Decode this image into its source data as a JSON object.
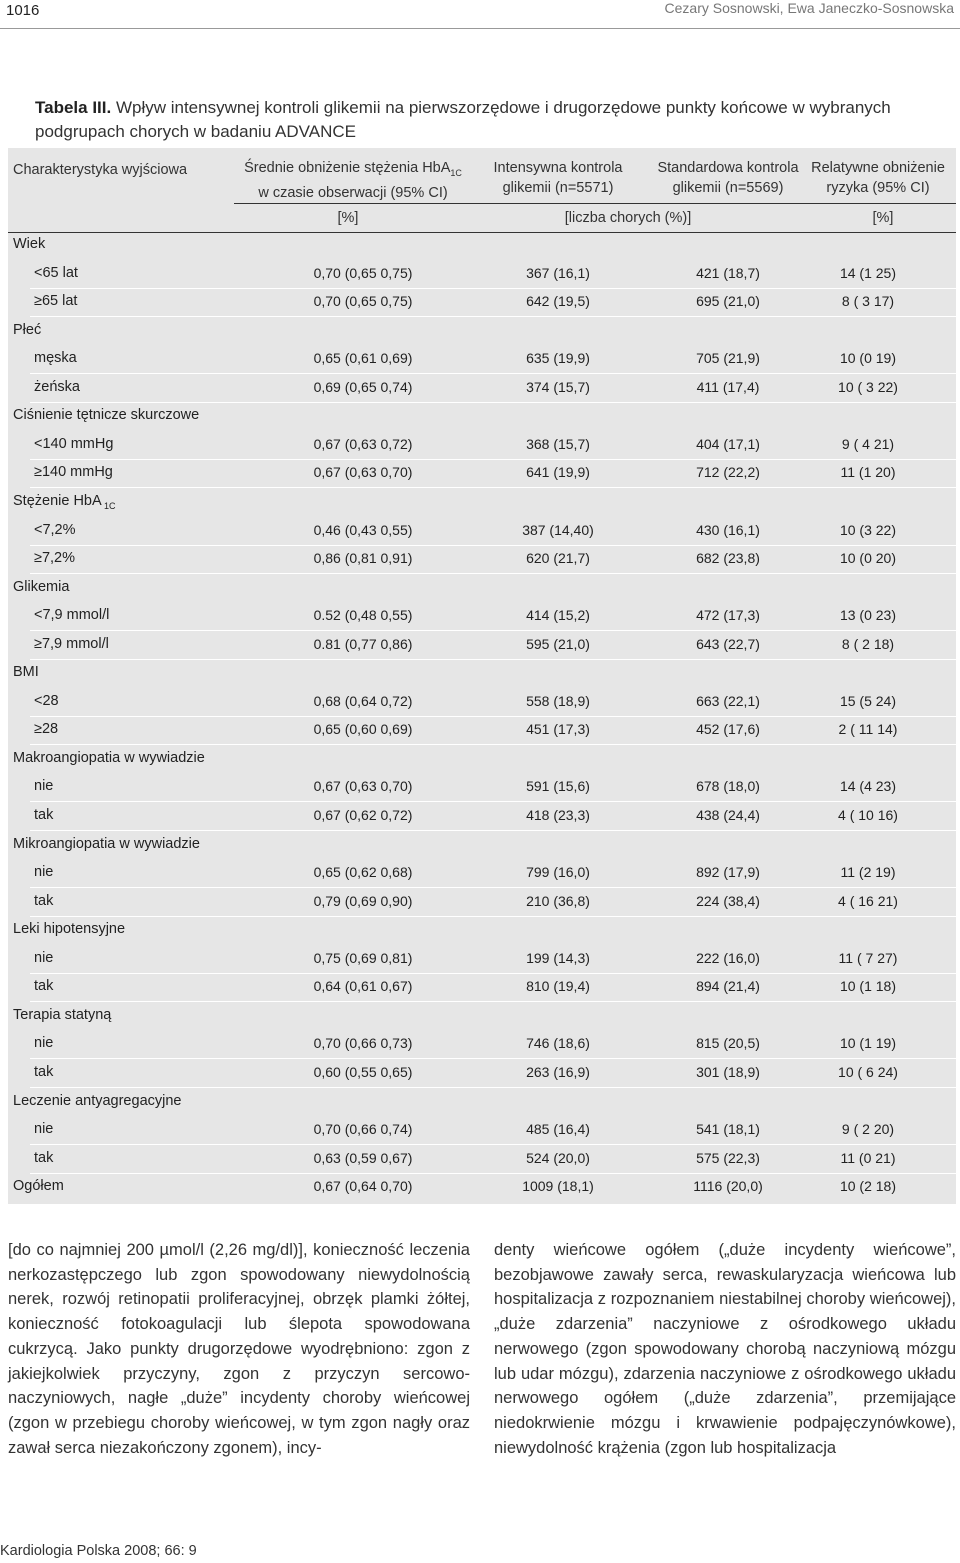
{
  "header": {
    "page_number": "1016",
    "authors": "Cezary Sosnowski, Ewa Janeczko-Sosnowska"
  },
  "caption": {
    "label": "Tabela III.",
    "text": " Wpływ intensywnej kontroli glikemii na pierwszorzędowe i drugorzędowe punkty końcowe w wybranych podgrupach chorych w badaniu ADVANCE"
  },
  "table": {
    "headers": {
      "col0": "Charakterystyka wyjściowa",
      "col1_line1": "Średnie obniżenie stężenia HbA",
      "col1_sub": "1C",
      "col1_line2": "w czasie obserwacji (95% CI)",
      "col2_line1": "Intensywna kontrola",
      "col2_line2": "glikemii (n=5571)",
      "col3_line1": "Standardowa kontrola",
      "col3_line2": "glikemii (n=5569)",
      "col4_line1": "Relatywne obniżenie",
      "col4_line2": "ryzyka (95% CI)"
    },
    "units": {
      "u1": "[%]",
      "u2": "[liczba chorych (%)]",
      "u4": "[%]"
    },
    "rows": [
      {
        "type": "group",
        "label": "Wiek"
      },
      {
        "type": "sub",
        "label": "<65 lat",
        "v": [
          "0,70 (0,65 0,75)",
          "367 (16,1)",
          "421 (18,7)",
          "14 (1 25)"
        ]
      },
      {
        "type": "sub",
        "label": "≥65 lat",
        "v": [
          "0,70 (0,65 0,75)",
          "642 (19,5)",
          "695 (21,0)",
          "8 ( 3 17)"
        ]
      },
      {
        "type": "group",
        "label": "Płeć"
      },
      {
        "type": "sub",
        "label": "męska",
        "v": [
          "0,65 (0,61 0,69)",
          "635 (19,9)",
          "705 (21,9)",
          "10 (0 19)"
        ]
      },
      {
        "type": "sub",
        "label": "żeńska",
        "v": [
          "0,69 (0,65 0,74)",
          "374 (15,7)",
          "411 (17,4)",
          "10 ( 3 22)"
        ]
      },
      {
        "type": "group",
        "label": "Ciśnienie tętnicze skurczowe"
      },
      {
        "type": "sub",
        "label": "<140 mmHg",
        "v": [
          "0,67 (0,63 0,72)",
          "368 (15,7)",
          "404 (17,1)",
          "9 ( 4 21)"
        ]
      },
      {
        "type": "sub",
        "label": "≥140 mmHg",
        "v": [
          "0,67 (0,63 0,70)",
          "641 (19,9)",
          "712 (22,2)",
          "11 (1 20)"
        ]
      },
      {
        "type": "group",
        "label": "Stężenie HbA",
        "sub": "1C"
      },
      {
        "type": "sub",
        "label": "<7,2%",
        "v": [
          "0,46 (0,43 0,55)",
          "387 (14,40)",
          "430 (16,1)",
          "10 (3 22)"
        ]
      },
      {
        "type": "sub",
        "label": "≥7,2%",
        "v": [
          "0,86 (0,81 0,91)",
          "620 (21,7)",
          "682 (23,8)",
          "10 (0 20)"
        ]
      },
      {
        "type": "group",
        "label": "Glikemia"
      },
      {
        "type": "sub",
        "label": "<7,9 mmol/l",
        "v": [
          "0.52 (0,48 0,55)",
          "414 (15,2)",
          "472 (17,3)",
          "13 (0 23)"
        ]
      },
      {
        "type": "sub",
        "label": "≥7,9 mmol/l",
        "v": [
          "0.81 (0,77 0,86)",
          "595 (21,0)",
          "643 (22,7)",
          "8 ( 2 18)"
        ]
      },
      {
        "type": "group",
        "label": "BMI"
      },
      {
        "type": "sub",
        "label": "<28",
        "v": [
          "0,68 (0,64 0,72)",
          "558 (18,9)",
          "663 (22,1)",
          "15 (5 24)"
        ]
      },
      {
        "type": "sub",
        "label": "≥28",
        "v": [
          "0,65 (0,60 0,69)",
          "451 (17,3)",
          "452 (17,6)",
          "2 ( 11 14)"
        ]
      },
      {
        "type": "group",
        "label": "Makroangiopatia w wywiadzie"
      },
      {
        "type": "sub",
        "label": "nie",
        "v": [
          "0,67 (0,63 0,70)",
          "591 (15,6)",
          "678 (18,0)",
          "14 (4 23)"
        ]
      },
      {
        "type": "sub",
        "label": "tak",
        "v": [
          "0,67 (0,62 0,72)",
          "418 (23,3)",
          "438 (24,4)",
          "4 ( 10 16)"
        ]
      },
      {
        "type": "group",
        "label": "Mikroangiopatia w wywiadzie"
      },
      {
        "type": "sub",
        "label": "nie",
        "v": [
          "0,65 (0,62 0,68)",
          "799 (16,0)",
          "892 (17,9)",
          "11 (2 19)"
        ]
      },
      {
        "type": "sub",
        "label": "tak",
        "v": [
          "0,79 (0,69 0,90)",
          "210 (36,8)",
          "224 (38,4)",
          "4 ( 16 21)"
        ]
      },
      {
        "type": "group",
        "label": "Leki hipotensyjne"
      },
      {
        "type": "sub",
        "label": "nie",
        "v": [
          "0,75 (0,69 0,81)",
          "199 (14,3)",
          "222 (16,0)",
          "11 ( 7 27)"
        ]
      },
      {
        "type": "sub",
        "label": "tak",
        "v": [
          "0,64 (0,61 0,67)",
          "810 (19,4)",
          "894 (21,4)",
          "10 (1 18)"
        ]
      },
      {
        "type": "group",
        "label": "Terapia statyną"
      },
      {
        "type": "sub",
        "label": "nie",
        "v": [
          "0,70 (0,66 0,73)",
          "746 (18,6)",
          "815 (20,5)",
          "10 (1 19)"
        ]
      },
      {
        "type": "sub",
        "label": "tak",
        "v": [
          "0,60 (0,55 0,65)",
          "263 (16,9)",
          "301 (18,9)",
          "10 ( 6 24)"
        ]
      },
      {
        "type": "group",
        "label": "Leczenie antyagregacyjne"
      },
      {
        "type": "sub",
        "label": "nie",
        "v": [
          "0,70 (0,66 0,74)",
          "485 (16,4)",
          "541 (18,1)",
          "9 ( 2 20)"
        ]
      },
      {
        "type": "sub",
        "label": "tak",
        "v": [
          "0,63 (0,59 0,67)",
          "524 (20,0)",
          "575 (22,3)",
          "11 (0 21)"
        ]
      },
      {
        "type": "total",
        "label": "Ogółem",
        "v": [
          "0,67 (0,64 0,70)",
          "1009 (18,1)",
          "1116 (20,0)",
          "10 (2 18)"
        ]
      }
    ]
  },
  "body_text": {
    "left": "[do co najmniej 200 µmol/l (2,26 mg/dl)], konieczność leczenia nerkozastępczego lub zgon spowodowany niewydolnością nerek, rozwój retinopatii proliferacyjnej, obrzęk plamki żółtej, konieczność fotokoagulacji lub ślepota spowodowana cukrzycą. Jako punkty drugorzędowe wyodrębniono: zgon z jakiejkolwiek przyczyny, zgon z przyczyn sercowo-naczyniowych, nagłe „duże” incydenty choroby wieńcowej (zgon w przebiegu choroby wieńcowej, w tym zgon nagły oraz zawał serca niezakończony zgonem), incy-",
    "right": "denty wieńcowe ogółem („duże incydenty wieńcowe”, bezobjawowe zawały serca, rewaskularyzacja wieńcowa lub hospitalizacja z rozpoznaniem niestabilnej choroby wieńcowej), „duże zdarzenia” naczyniowe z ośrodkowego układu nerwowego (zgon spowodowany chorobą naczyniową mózgu lub udar mózgu), zdarzenia naczyniowe z ośrodkowego układu nerwowego ogółem („duże zdarzenia”, przemijające niedokrwienie mózgu i krwawienie podpajęczynówkowe), niewydolność krążenia (zgon lub hospitalizacja"
  },
  "footer": {
    "journal": "Kardiologia Polska 2008; 66: 9"
  }
}
